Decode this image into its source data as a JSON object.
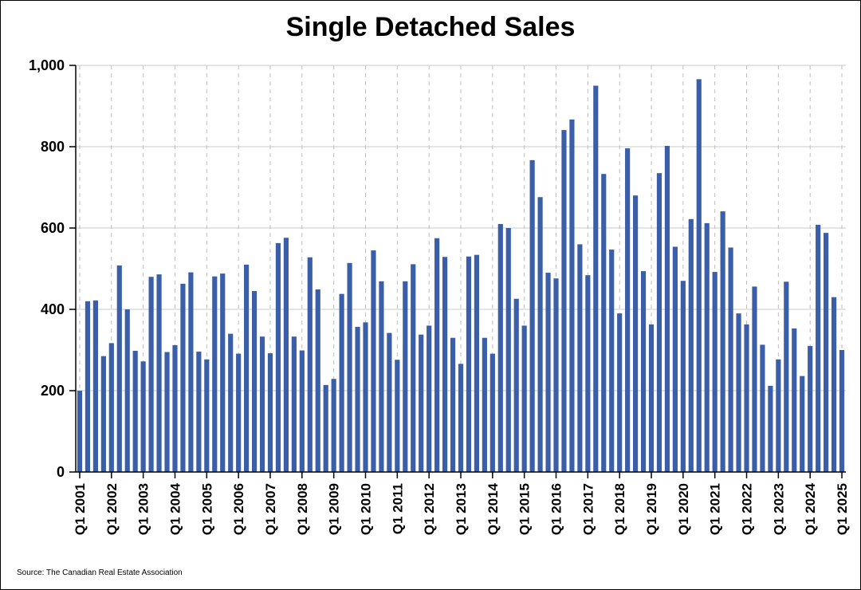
{
  "chart_data": {
    "type": "bar",
    "title": "Single Detached Sales",
    "source": "Source: The Canadian Real Estate Association",
    "xlabel": "",
    "ylabel": "",
    "ylim": [
      0,
      1000
    ],
    "yticks": [
      0,
      200,
      400,
      600,
      800,
      1000
    ],
    "ytick_labels": [
      "0",
      "200",
      "400",
      "600",
      "800",
      "1,000"
    ],
    "grid": true,
    "bar_color": "#3a5ea8",
    "xtick_labels": [
      "Q1 2001",
      "Q1 2002",
      "Q1 2003",
      "Q1 2004",
      "Q1 2005",
      "Q1 2006",
      "Q1 2007",
      "Q1 2008",
      "Q1 2009",
      "Q1 2010",
      "Q1 2011",
      "Q1 2012",
      "Q1 2013",
      "Q1 2014",
      "Q1 2015",
      "Q1 2016",
      "Q1 2017",
      "Q1 2018",
      "Q1 2019",
      "Q1 2020",
      "Q1 2021",
      "Q1 2022",
      "Q1 2023",
      "Q1 2024",
      "Q1 2025"
    ],
    "values": [
      200,
      420,
      422,
      285,
      317,
      508,
      400,
      298,
      272,
      480,
      486,
      295,
      312,
      463,
      491,
      296,
      277,
      481,
      488,
      340,
      291,
      510,
      445,
      333,
      292,
      563,
      576,
      333,
      299,
      528,
      449,
      214,
      229,
      438,
      514,
      357,
      368,
      545,
      469,
      342,
      276,
      469,
      511,
      338,
      360,
      575,
      529,
      330,
      266,
      530,
      534,
      330,
      291,
      610,
      600,
      426,
      360,
      767,
      676,
      490,
      476,
      841,
      867,
      560,
      484,
      950,
      733,
      547,
      390,
      796,
      680,
      494,
      363,
      735,
      802,
      554,
      470,
      622,
      966,
      612,
      492,
      641,
      552,
      390,
      363,
      456,
      313,
      212,
      277,
      468,
      353,
      236,
      310,
      608,
      588,
      430,
      300
    ]
  }
}
